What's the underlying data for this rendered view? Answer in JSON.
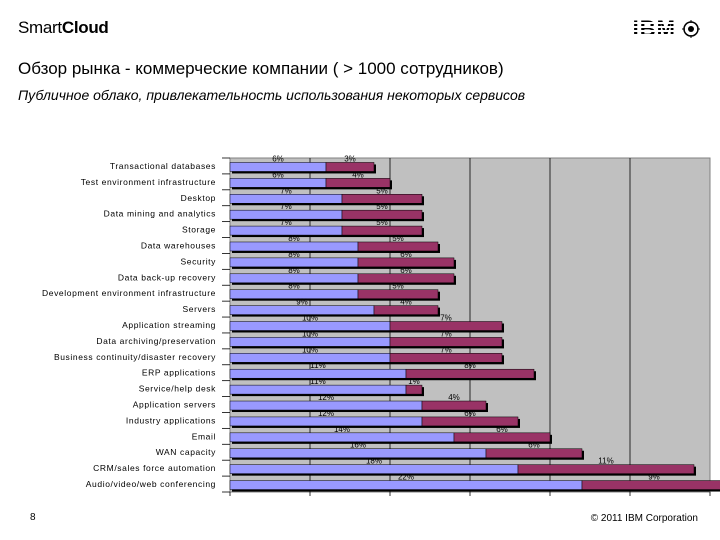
{
  "header": {
    "logo_left_smart": "Smart",
    "logo_left_cloud": "Cloud",
    "logo_right": "IBM",
    "title": "Обзор рынка - коммерческие компании ( > 1000 сотрудников)",
    "subtitle": "Публичное облако, привлекательность использования некоторых сервисов"
  },
  "footer": {
    "page_number": "8",
    "copyright": "© 2011 IBM Corporation"
  },
  "colors": {
    "series1": "#9999ff",
    "series2": "#993366",
    "plot_bg": "#c0c0c0"
  },
  "icons": [
    "ibm-globe-icon"
  ],
  "chart_data": {
    "type": "bar",
    "orientation": "horizontal",
    "stacked": true,
    "grid": true,
    "title": "",
    "xlabel": "",
    "ylabel": "",
    "xlim": [
      0,
      30
    ],
    "categories": [
      "Transactional databases",
      "Test environment infrastructure",
      "Desktop",
      "Data mining and analytics",
      "Storage",
      "Data warehouses",
      "Security",
      "Data back-up recovery",
      "Development environment infrastructure",
      "Servers",
      "Application streaming",
      "Data archiving/preservation",
      "Business continuity/disaster recovery",
      "ERP applications",
      "Service/help desk",
      "Application servers",
      "Industry applications",
      "Email",
      "WAN capacity",
      "CRM/sales force automation",
      "Audio/video/web conferencing"
    ],
    "series": [
      {
        "values": [
          6,
          6,
          7,
          7,
          7,
          8,
          8,
          8,
          8,
          9,
          10,
          10,
          10,
          11,
          11,
          12,
          12,
          14,
          16,
          18,
          22
        ],
        "labels": [
          "6%",
          "6%",
          "7%",
          "7%",
          "7%",
          "8%",
          "8%",
          "8%",
          "8%",
          "9%",
          "10%",
          "10%",
          "10%",
          "11%",
          "11%",
          "12%",
          "12%",
          "14%",
          "16%",
          "18%",
          "22%"
        ]
      },
      {
        "values": [
          3,
          4,
          5,
          5,
          5,
          5,
          6,
          6,
          5,
          4,
          7,
          7,
          7,
          8,
          1,
          4,
          6,
          6,
          6,
          11,
          9
        ],
        "labels": [
          "3%",
          "4%",
          "5%",
          "5%",
          "5%",
          "5%",
          "6%",
          "6%",
          "5%",
          "4%",
          "7%",
          "7%",
          "7%",
          "8%",
          "1%",
          "4%",
          "6%",
          "6%",
          "6%",
          "11%",
          "9%"
        ]
      }
    ]
  }
}
